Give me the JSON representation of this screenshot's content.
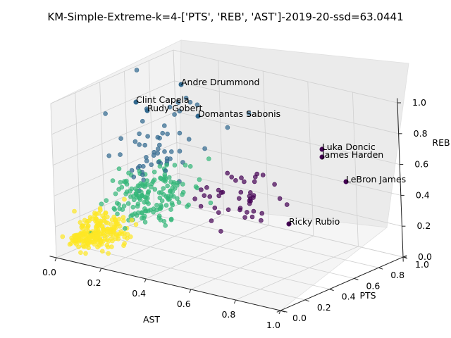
{
  "chart_data": {
    "type": "scatter",
    "projection": "3d",
    "title": "KM-Simple-Extreme-k=4-['PTS', 'REB', 'AST']-2019-20-ssd=63.0441",
    "xlabel": "AST",
    "ylabel": "PTS",
    "zlabel": "REB",
    "xlim": [
      0.0,
      1.0
    ],
    "ylim": [
      0.0,
      1.0
    ],
    "zlim": [
      0.0,
      1.0
    ],
    "x_ticks": [
      "0.0",
      "0.2",
      "0.4",
      "0.6",
      "0.8",
      "1.0"
    ],
    "y_ticks": [
      "0.0",
      "0.2",
      "0.4",
      "0.6",
      "0.8",
      "1.0"
    ],
    "z_ticks": [
      "0.0",
      "0.2",
      "0.4",
      "0.6",
      "0.8",
      "1.0"
    ],
    "grid": true,
    "legend": "none",
    "cluster_colors": [
      "#440154",
      "#31688e",
      "#35b779",
      "#fde725"
    ],
    "annotations": [
      {
        "text": "Andre Drummond"
      },
      {
        "text": "Clint Capela"
      },
      {
        "text": "Rudy Gobert"
      },
      {
        "text": "Domantas Sabonis"
      },
      {
        "text": "Luka Doncic"
      },
      {
        "text": "James Harden"
      },
      {
        "text": "LeBron James"
      },
      {
        "text": "Ricky Rubio"
      }
    ]
  }
}
